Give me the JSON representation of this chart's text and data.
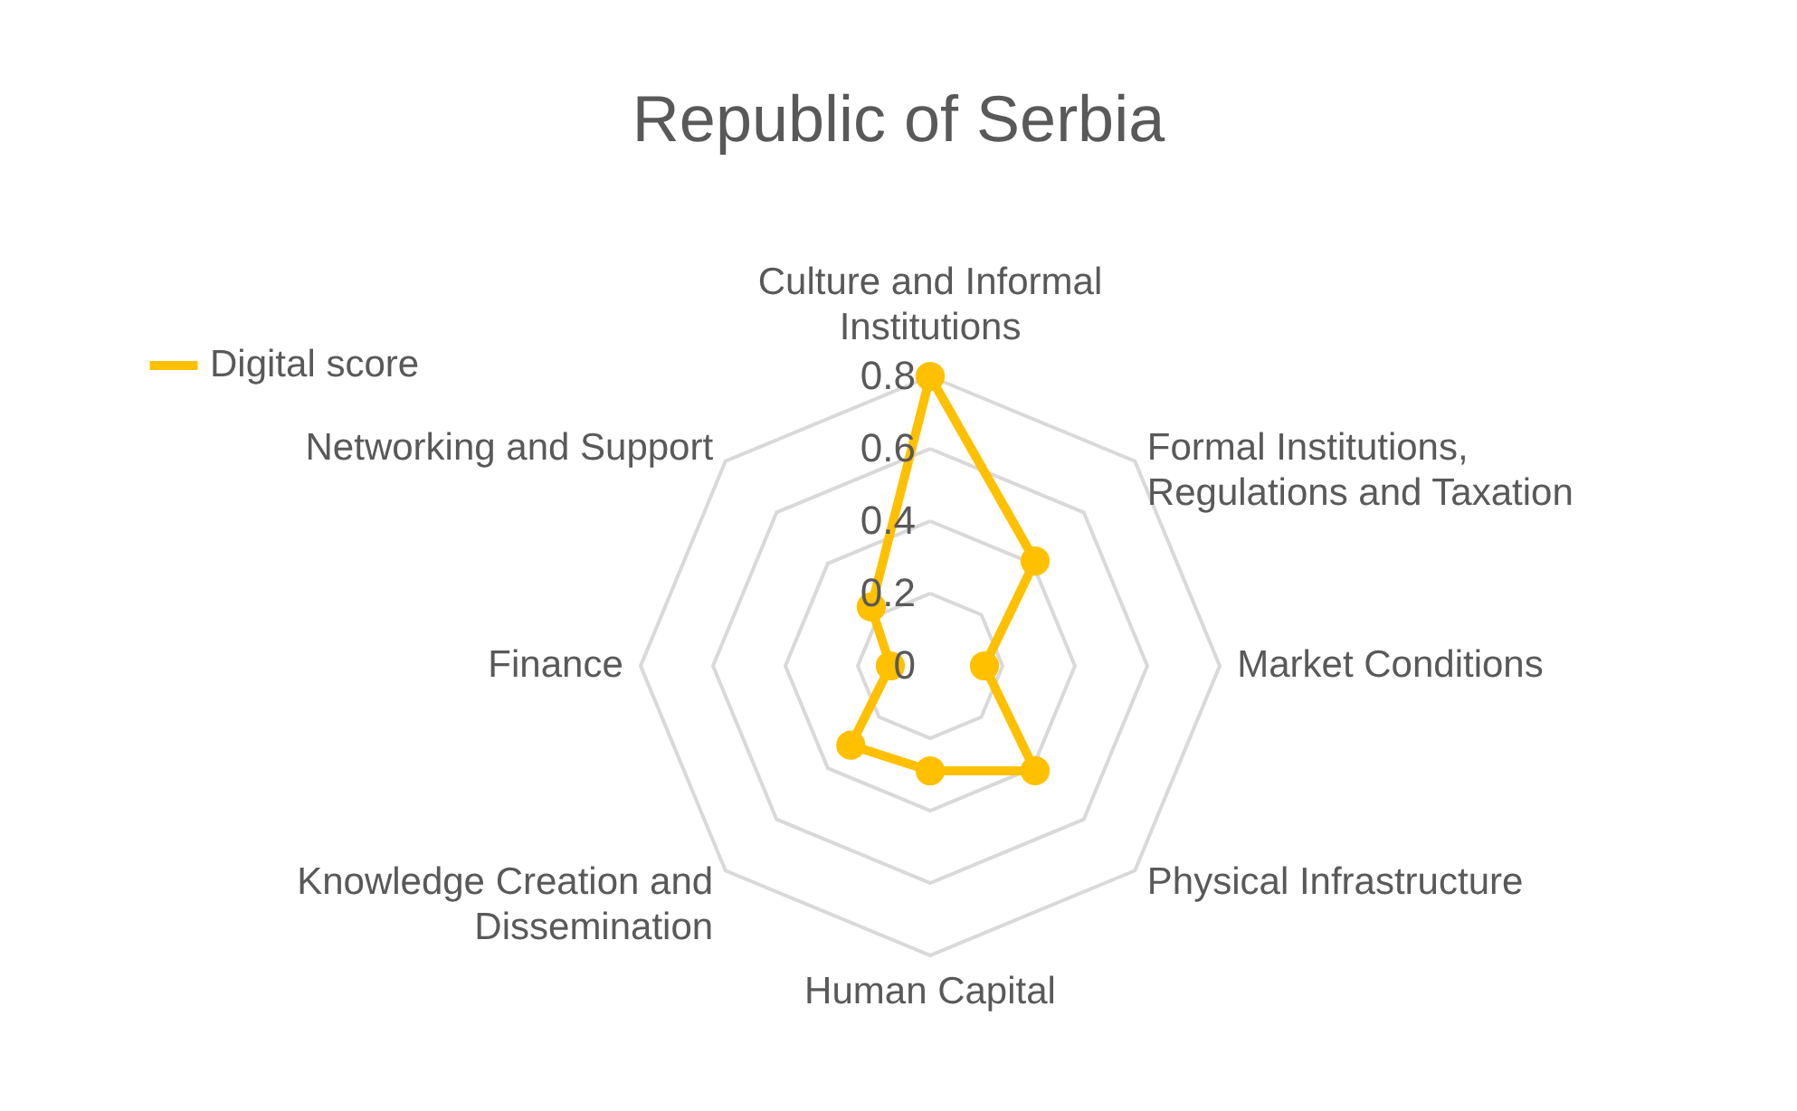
{
  "chart_data": {
    "type": "radar",
    "title": "Republic of Serbia",
    "categories": [
      "Culture and Informal Institutions",
      "Formal Institutions, Regulations and Taxation",
      "Market Conditions",
      "Physical Infrastructure",
      "Human Capital",
      "Knowledge Creation and Dissemination",
      "Finance",
      "Networking and Support"
    ],
    "series": [
      {
        "name": "Digital score",
        "color": "#ffc000",
        "values": [
          0.8,
          0.41,
          0.15,
          0.41,
          0.29,
          0.31,
          0.11,
          0.23
        ]
      }
    ],
    "ylim": [
      0,
      0.8
    ],
    "yticks": [
      0,
      0.2,
      0.4,
      0.6,
      0.8
    ],
    "grid": true,
    "legend": "top left",
    "marker": "circle"
  }
}
